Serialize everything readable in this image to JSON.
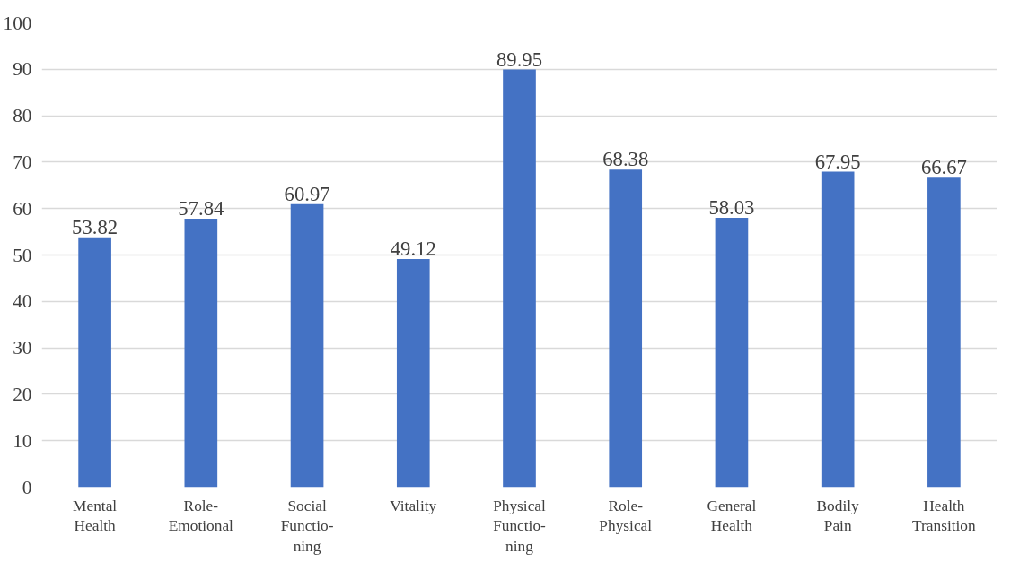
{
  "chart_data": {
    "type": "bar",
    "categories": [
      "Mental\nHealth",
      "Role-\nEmotional",
      "Social\nFunctio-\nning",
      "Vitality",
      "Physical\nFunctio-\nning",
      "Role-\nPhysical",
      "General\nHealth",
      "Bodily\nPain",
      "Health\nTransition"
    ],
    "values": [
      53.82,
      57.84,
      60.97,
      49.12,
      89.95,
      68.38,
      58.03,
      67.95,
      66.67
    ],
    "color": "#4472c4",
    "ylim": [
      0,
      100
    ],
    "yticks": [
      0,
      10,
      20,
      30,
      40,
      50,
      60,
      70,
      80,
      90,
      100
    ],
    "grid": "y",
    "data_labels": true
  }
}
